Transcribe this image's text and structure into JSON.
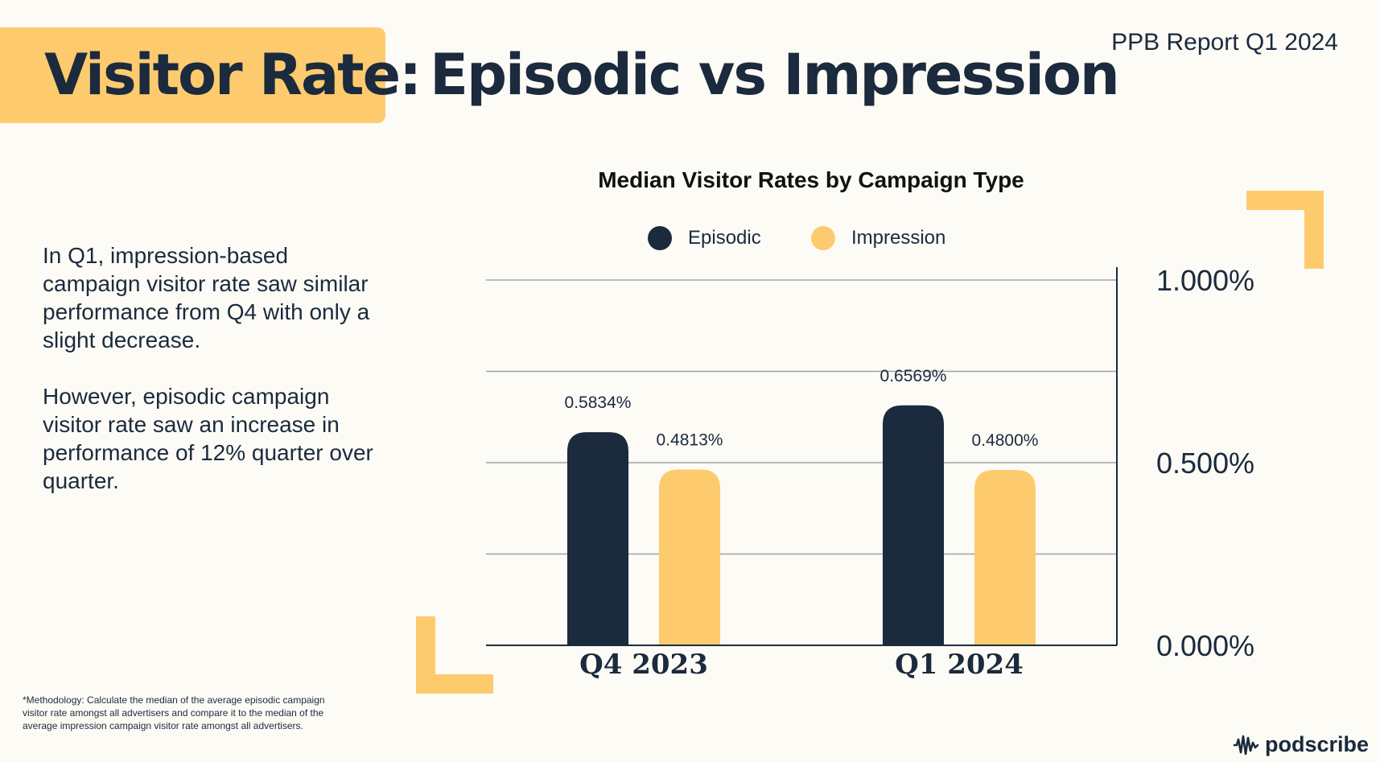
{
  "header": {
    "title_highlight": "Visitor Rate:",
    "title_rest": "Episodic vs Impression",
    "report_label": "PPB Report Q1 2024"
  },
  "body": {
    "paragraphs": [
      "In Q1, impression-based campaign visitor rate saw similar performance from Q4 with only a slight decrease.",
      "However, episodic campaign visitor rate saw an increase in performance of 12% quarter over quarter."
    ]
  },
  "footer": {
    "methodology": "*Methodology: Calculate the median of the average episodic campaign visitor rate amongst all advertisers and compare it to the median of the average impression campaign visitor rate amongst all advertisers.",
    "brand": "podscribe"
  },
  "colors": {
    "navy": "#1b2a3d",
    "gold": "#fdcb6e",
    "background": "#fdfbf6",
    "grid": "#9ea3a8"
  },
  "chart_data": {
    "type": "bar",
    "title": "Median Visitor Rates by Campaign Type",
    "categories": [
      "Q4 2023",
      "Q1 2024"
    ],
    "series": [
      {
        "name": "Episodic",
        "values": [
          0.5834,
          0.6569
        ],
        "labels": [
          "0.5834%",
          "0.6569%"
        ],
        "color": "#1b2a3d"
      },
      {
        "name": "Impression",
        "values": [
          0.4813,
          0.48
        ],
        "labels": [
          "0.4813%",
          "0.4800%"
        ],
        "color": "#fdcb6e"
      }
    ],
    "y_ticks": [
      {
        "value": 0,
        "label": "0.000%"
      },
      {
        "value": 0.5,
        "label": "0.500%"
      },
      {
        "value": 1.0,
        "label": "1.000%"
      }
    ],
    "ylim": [
      0,
      1.0
    ],
    "xlabel": "",
    "ylabel": "",
    "legend_position": "top-center",
    "y_axis_side": "right",
    "grid": true
  }
}
